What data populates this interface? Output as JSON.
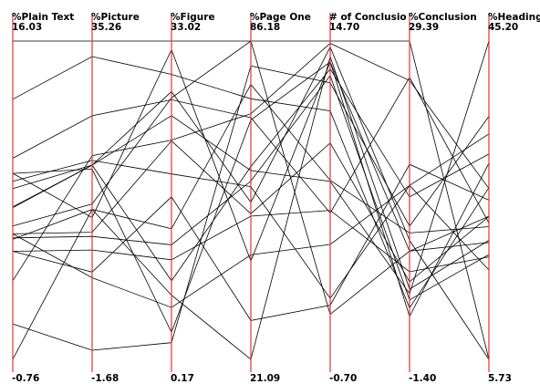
{
  "chart_data": {
    "type": "parallel-coordinates",
    "axes": [
      {
        "name": "%Plain Text",
        "max": "16.03",
        "min": "-0.76"
      },
      {
        "name": "%Picture",
        "max": "35.26",
        "min": "-1.68"
      },
      {
        "name": "%Figure",
        "max": "33.02",
        "min": "0.17"
      },
      {
        "name": "%Page One",
        "max": "86.18",
        "min": "21.09"
      },
      {
        "name": "# of Conclusio",
        "max": "14.70",
        "min": "-0.70"
      },
      {
        "name": "%Conclusion",
        "max": "29.39",
        "min": "-1.40"
      },
      {
        "name": "%Heading",
        "max": "45.20",
        "min": "5.73"
      }
    ],
    "records": [
      [
        16.03,
        35.26,
        33.02,
        86.18,
        14.7,
        29.39,
        5.73
      ],
      [
        12.96,
        33.46,
        29.58,
        74.38,
        11.32,
        3.57,
        27.03
      ],
      [
        9.85,
        26.59,
        26.96,
        70.51,
        6.38,
        25.88,
        22.63
      ],
      [
        9.05,
        20.4,
        2.96,
        70.05,
        13.69,
        2.75,
        30.06
      ],
      [
        9.05,
        14.77,
        32.13,
        41.2,
        13.69,
        9.06,
        23.47
      ],
      [
        8.63,
        21.41,
        19.31,
        56.41,
        2.25,
        15.42,
        16.81
      ],
      [
        8.25,
        20.87,
        25.32,
        59.7,
        7.91,
        4.94,
        45.2
      ],
      [
        7.28,
        20.87,
        8.27,
        60.52,
        13.35,
        14.31,
        31.19
      ],
      [
        7.24,
        20.87,
        27.81,
        53.21,
        14.41,
        10.11,
        5.73
      ],
      [
        6.28,
        16.36,
        27.16,
        86.18,
        1.48,
        9.07,
        20.23
      ],
      [
        5.86,
        13.08,
        22.72,
        50.88,
        9.77,
        6.11,
        23.45
      ],
      [
        5.86,
        7.79,
        5.53,
        42.46,
        4.86,
        15.42,
        33.69
      ],
      [
        5.65,
        12.59,
        11.99,
        57.56,
        13.03,
        4.35,
        18.72
      ],
      [
        4.94,
        8.45,
        16.94,
        29.04,
        1.92,
        17.46,
        25.48
      ],
      [
        4.94,
        11.01,
        10.45,
        50.38,
        6.51,
        7.07,
        18.44
      ],
      [
        3.39,
        21.95,
        22.8,
        71.32,
        14.59,
        25.57,
        26.91
      ],
      [
        5.57,
        15.72,
        13.65,
        77.3,
        7.96,
        10.83,
        22.19
      ],
      [
        1.11,
        -0.62,
        1.89,
        81.11,
        12.68,
        11.48,
        35.87
      ],
      [
        -0.76,
        15.72,
        6.8,
        21.09,
        13.95,
        5.39,
        20.49
      ]
    ]
  }
}
